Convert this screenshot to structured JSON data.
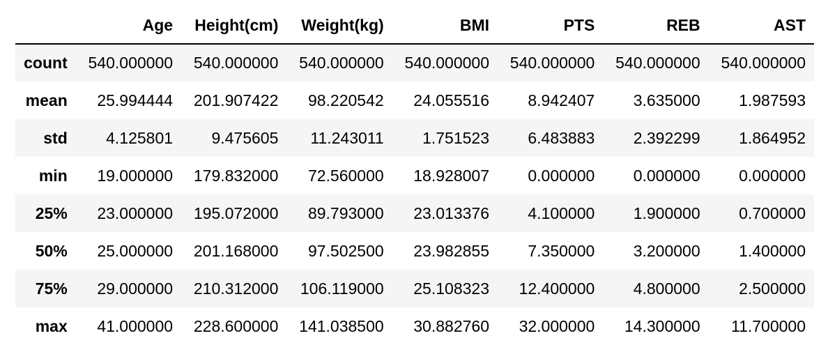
{
  "table": {
    "columns": [
      "Age",
      "Height(cm)",
      "Weight(kg)",
      "BMI",
      "PTS",
      "REB",
      "AST"
    ],
    "rows": [
      {
        "label": "count",
        "values": [
          "540.000000",
          "540.000000",
          "540.000000",
          "540.000000",
          "540.000000",
          "540.000000",
          "540.000000"
        ]
      },
      {
        "label": "mean",
        "values": [
          "25.994444",
          "201.907422",
          "98.220542",
          "24.055516",
          "8.942407",
          "3.635000",
          "1.987593"
        ]
      },
      {
        "label": "std",
        "values": [
          "4.125801",
          "9.475605",
          "11.243011",
          "1.751523",
          "6.483883",
          "2.392299",
          "1.864952"
        ]
      },
      {
        "label": "min",
        "values": [
          "19.000000",
          "179.832000",
          "72.560000",
          "18.928007",
          "0.000000",
          "0.000000",
          "0.000000"
        ]
      },
      {
        "label": "25%",
        "values": [
          "23.000000",
          "195.072000",
          "89.793000",
          "23.013376",
          "4.100000",
          "1.900000",
          "0.700000"
        ]
      },
      {
        "label": "50%",
        "values": [
          "25.000000",
          "201.168000",
          "97.502500",
          "23.982855",
          "7.350000",
          "3.200000",
          "1.400000"
        ]
      },
      {
        "label": "75%",
        "values": [
          "29.000000",
          "210.312000",
          "106.119000",
          "25.108323",
          "12.400000",
          "4.800000",
          "2.500000"
        ]
      },
      {
        "label": "max",
        "values": [
          "41.000000",
          "228.600000",
          "141.038500",
          "30.882760",
          "32.000000",
          "14.300000",
          "11.700000"
        ]
      }
    ]
  }
}
